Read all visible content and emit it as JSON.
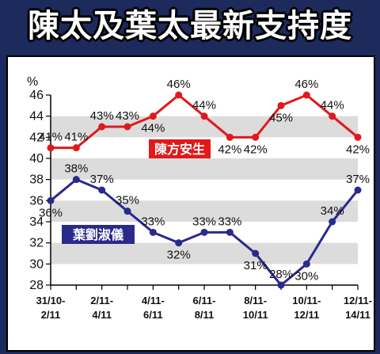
{
  "title": "陳太及葉太最新支持度",
  "chart_data": {
    "type": "line",
    "ylabel": "%",
    "ylim": [
      28,
      46
    ],
    "yticks": [
      28,
      30,
      32,
      34,
      36,
      38,
      40,
      42,
      44,
      46
    ],
    "grid": "alternating horizontal bands",
    "x_tick_labels": [
      [
        "31/10-",
        "2/11"
      ],
      [
        "2/11-",
        "4/11"
      ],
      [
        "4/11-",
        "6/11"
      ],
      [
        "6/11-",
        "8/11"
      ],
      [
        "8/11-",
        "10/11"
      ],
      [
        "10/11-",
        "12/11"
      ],
      [
        "12/11-",
        "14/11"
      ]
    ],
    "points_count": 13,
    "series": [
      {
        "name": "陳方安生",
        "color": "#e0191b",
        "values": [
          41,
          41,
          43,
          43,
          44,
          46,
          44,
          42,
          42,
          45,
          46,
          44,
          42
        ],
        "labels": [
          "41%",
          "41%",
          "43%",
          "43%",
          "44%",
          "46%",
          "44%",
          "42%",
          "42%",
          "45%",
          "46%",
          "44%",
          "42%"
        ]
      },
      {
        "name": "葉劉淑儀",
        "color": "#2a2a8c",
        "values": [
          36,
          38,
          37,
          35,
          33,
          32,
          33,
          33,
          31,
          28,
          30,
          34,
          37
        ],
        "labels": [
          "36%",
          "38%",
          "37%",
          "35%",
          "33%",
          "32%",
          "33%",
          "33%",
          "31%",
          "28%",
          "30%",
          "34%",
          "37%"
        ]
      }
    ]
  }
}
